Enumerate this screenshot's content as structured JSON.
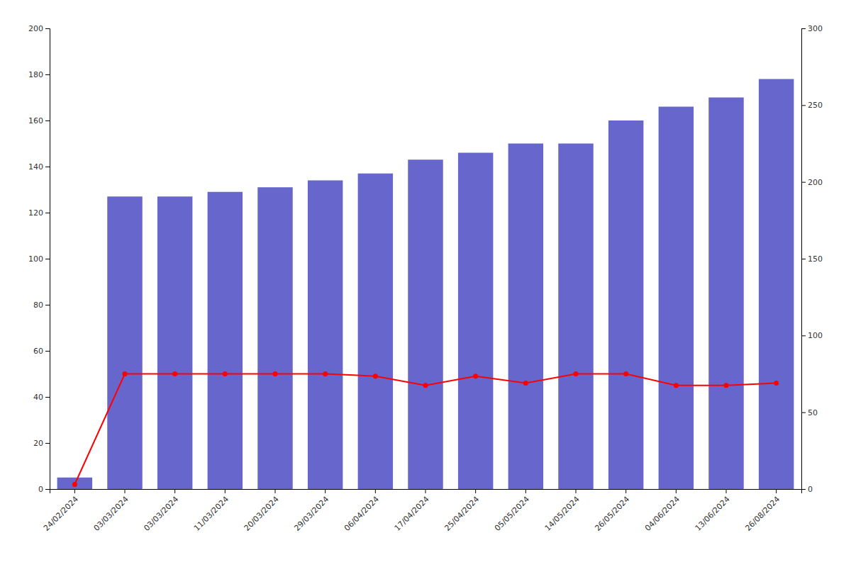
{
  "chart_data": {
    "type": "bar",
    "categories": [
      "24/02/2024",
      "03/03/2024",
      "03/03/2024",
      "11/03/2024",
      "20/03/2024",
      "29/03/2024",
      "06/04/2024",
      "17/04/2024",
      "25/04/2024",
      "05/05/2024",
      "14/05/2024",
      "26/05/2024",
      "04/06/2024",
      "13/06/2024",
      "26/08/2024"
    ],
    "series": [
      {
        "type": "bar",
        "color": "#6666cc",
        "values": [
          5,
          127,
          127,
          129,
          131,
          134,
          137,
          143,
          146,
          150,
          150,
          160,
          166,
          170,
          178
        ]
      },
      {
        "type": "line",
        "color": "#ff0000",
        "marker": "circle",
        "values": [
          2,
          50,
          50,
          50,
          50,
          50,
          49,
          45,
          49,
          46,
          50,
          50,
          45,
          45,
          46
        ]
      }
    ],
    "ylim": [
      0,
      200
    ],
    "yticks": [
      0,
      20,
      40,
      60,
      80,
      100,
      120,
      140,
      160,
      180,
      200
    ],
    "y2lim": [
      0,
      300
    ],
    "y2ticks": [
      0,
      50,
      100,
      150,
      200,
      250,
      300
    ],
    "grid": false
  }
}
